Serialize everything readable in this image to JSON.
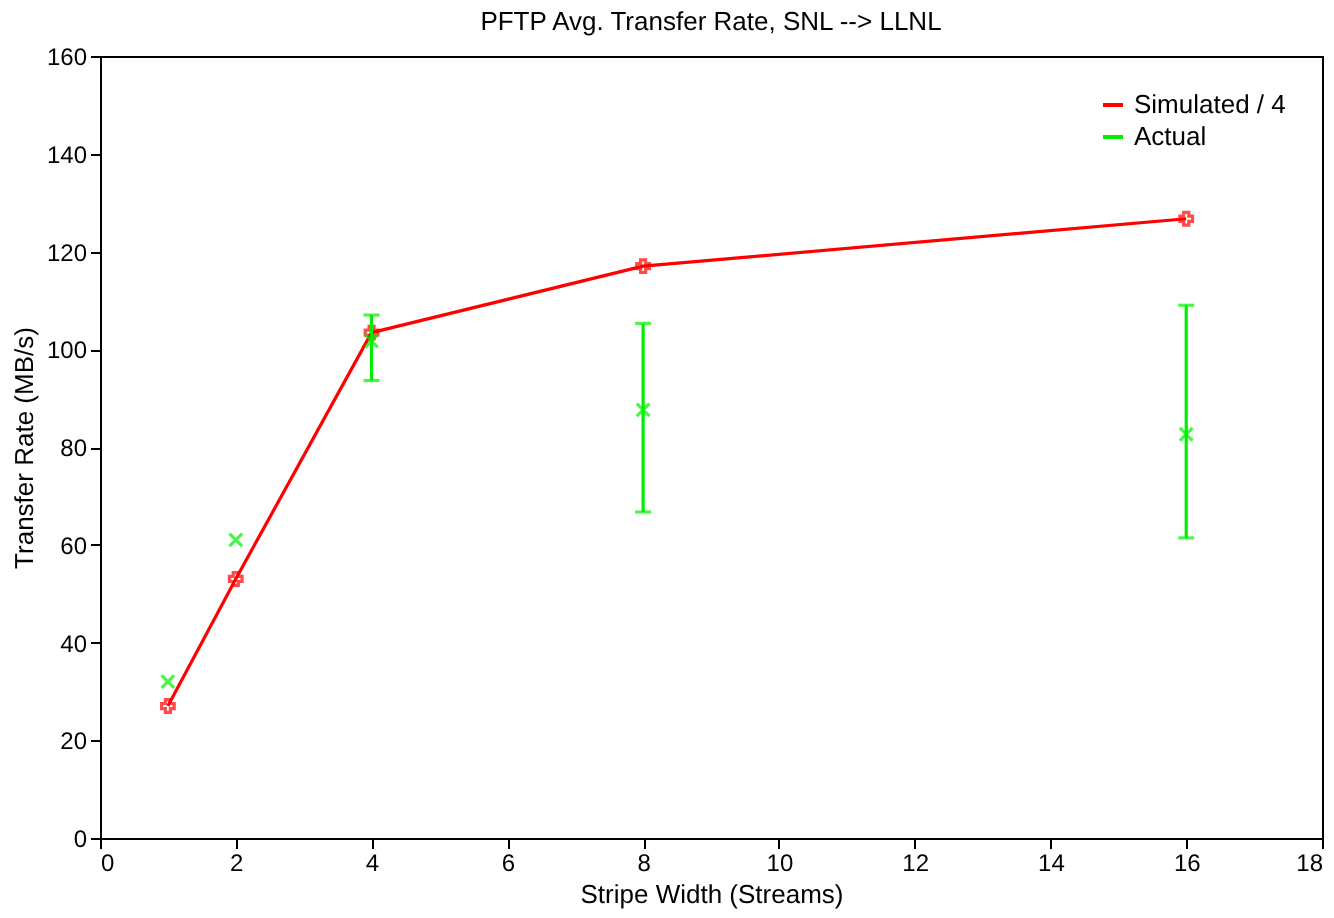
{
  "chart_data": {
    "type": "line",
    "title": "PFTP Avg. Transfer Rate, SNL --> LLNL",
    "xlabel": "Stripe Width (Streams)",
    "ylabel": "Transfer Rate (MB/s)",
    "x": [
      1,
      2,
      4,
      8,
      16
    ],
    "series": [
      {
        "name": "Simulated / 4",
        "color": "#ff0000",
        "marker": "cross",
        "values": [
          27,
          53,
          103.4,
          117,
          126.7
        ]
      },
      {
        "name": "Actual",
        "type": "scatter",
        "color": "#00ee00",
        "marker": "cross",
        "values": [
          32,
          61,
          101.7,
          87.6,
          82.6
        ],
        "errors": [
          null,
          null,
          [
            93.6,
            107
          ],
          [
            66.7,
            105.3
          ],
          [
            61.4,
            109
          ]
        ]
      }
    ],
    "xlim": [
      0,
      18
    ],
    "xticks": [
      0,
      2,
      4,
      6,
      8,
      10,
      12,
      14,
      16,
      18
    ],
    "ylim": [
      0,
      160
    ],
    "yticks": [
      0,
      20,
      40,
      60,
      80,
      100,
      120,
      140,
      160
    ],
    "grid": false,
    "legend": "top right"
  }
}
